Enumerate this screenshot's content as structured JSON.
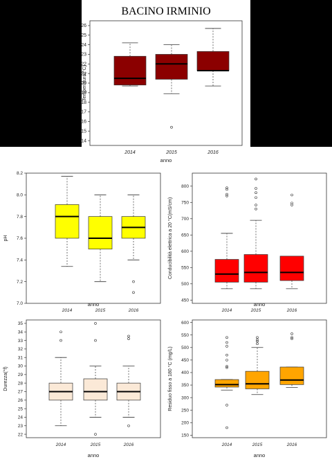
{
  "page_title": "BACINO IRMINIO",
  "colors": {
    "dark_red": "#8b0000",
    "yellow": "#ffff00",
    "red": "#ff0000",
    "bisque": "#fbe9d7",
    "orange": "#ffa500"
  },
  "chart_data": [
    {
      "type": "boxplot",
      "ylabel": "Temperatura(°C)",
      "xlabel": "anno",
      "categories": [
        "2014",
        "2015",
        "2016"
      ],
      "ylim": [
        13.5,
        26.5
      ],
      "yticks": [
        14,
        15,
        16,
        17,
        18,
        19,
        20,
        21,
        22,
        23,
        24,
        25,
        26
      ],
      "fill": "#8b0000",
      "boxes": [
        {
          "whisker_low": 19.7,
          "q1": 19.8,
          "median": 20.5,
          "q3": 22.8,
          "whisker_high": 24.2,
          "outliers": []
        },
        {
          "whisker_low": 18.9,
          "q1": 20.4,
          "median": 22.0,
          "q3": 23.0,
          "whisker_high": 24.0,
          "outliers": [
            15.4
          ]
        },
        {
          "whisker_low": 19.7,
          "q1": 21.3,
          "median": 21.3,
          "q3": 23.3,
          "whisker_high": 25.7,
          "outliers": []
        }
      ]
    },
    {
      "type": "boxplot",
      "ylabel": "pH",
      "xlabel": "anno",
      "categories": [
        "2014",
        "2015",
        "2016"
      ],
      "ylim": [
        7.0,
        8.2
      ],
      "yticks": [
        7.0,
        7.2,
        7.4,
        7.6,
        7.8,
        8.0,
        8.2
      ],
      "fill": "#ffff00",
      "boxes": [
        {
          "whisker_low": 7.34,
          "q1": 7.6,
          "median": 7.8,
          "q3": 7.91,
          "whisker_high": 8.17,
          "outliers": []
        },
        {
          "whisker_low": 7.2,
          "q1": 7.5,
          "median": 7.6,
          "q3": 7.8,
          "whisker_high": 8.0,
          "outliers": []
        },
        {
          "whisker_low": 7.4,
          "q1": 7.6,
          "median": 7.7,
          "q3": 7.8,
          "whisker_high": 8.0,
          "outliers": [
            7.2,
            7.1
          ]
        }
      ]
    },
    {
      "type": "boxplot",
      "ylabel": "Conducibilità elettrica a 20 °C(mS/cm)",
      "xlabel": "anno",
      "categories": [
        "2014",
        "2015",
        "2016"
      ],
      "ylim": [
        440,
        840
      ],
      "yticks": [
        450,
        500,
        550,
        600,
        650,
        700,
        750,
        800
      ],
      "fill": "#ff0000",
      "boxes": [
        {
          "whisker_low": 485,
          "q1": 505,
          "median": 530,
          "q3": 575,
          "whisker_high": 655,
          "outliers": [
            770,
            775,
            790,
            795
          ]
        },
        {
          "whisker_low": 485,
          "q1": 505,
          "median": 535,
          "q3": 590,
          "whisker_high": 695,
          "outliers": [
            730,
            742,
            765,
            780,
            793,
            822
          ]
        },
        {
          "whisker_low": 485,
          "q1": 510,
          "median": 535,
          "q3": 585,
          "whisker_high": 585,
          "outliers": [
            742,
            748,
            773
          ]
        }
      ]
    },
    {
      "type": "boxplot",
      "ylabel": "Durezza(°f)",
      "xlabel": "anno",
      "categories": [
        "2014",
        "2015",
        "2016"
      ],
      "ylim": [
        21.6,
        35.4
      ],
      "yticks": [
        22,
        23,
        24,
        25,
        26,
        27,
        28,
        29,
        30,
        31,
        32,
        33,
        34,
        35
      ],
      "fill": "#fbe9d7",
      "boxes": [
        {
          "whisker_low": 23,
          "q1": 26,
          "median": 27,
          "q3": 28,
          "whisker_high": 31,
          "outliers": [
            33,
            34
          ]
        },
        {
          "whisker_low": 24,
          "q1": 26,
          "median": 27,
          "q3": 28.5,
          "whisker_high": 30,
          "outliers": [
            22,
            33,
            35
          ]
        },
        {
          "whisker_low": 24,
          "q1": 26,
          "median": 27,
          "q3": 28,
          "whisker_high": 30,
          "outliers": [
            23,
            33.2,
            33.5
          ]
        }
      ]
    },
    {
      "type": "boxplot",
      "ylabel": "Residuo fisso a 180 °C (mg/L)",
      "xlabel": "anno",
      "categories": [
        "2014",
        "2015",
        "2016"
      ],
      "ylim": [
        140,
        610
      ],
      "yticks": [
        150,
        200,
        250,
        300,
        350,
        400,
        450,
        500,
        550,
        600
      ],
      "fill": "#ffa500",
      "boxes": [
        {
          "whisker_low": 330,
          "q1": 342,
          "median": 352,
          "q3": 372,
          "whisker_high": 372,
          "outliers": [
            180,
            270,
            420,
            425,
            450,
            470,
            505,
            520,
            540
          ]
        },
        {
          "whisker_low": 312,
          "q1": 335,
          "median": 355,
          "q3": 405,
          "whisker_high": 500,
          "outliers": [
            515,
            525,
            530,
            540
          ]
        },
        {
          "whisker_low": 340,
          "q1": 352,
          "median": 370,
          "q3": 422,
          "whisker_high": 422,
          "outliers": [
            535,
            540,
            555
          ]
        }
      ]
    }
  ]
}
